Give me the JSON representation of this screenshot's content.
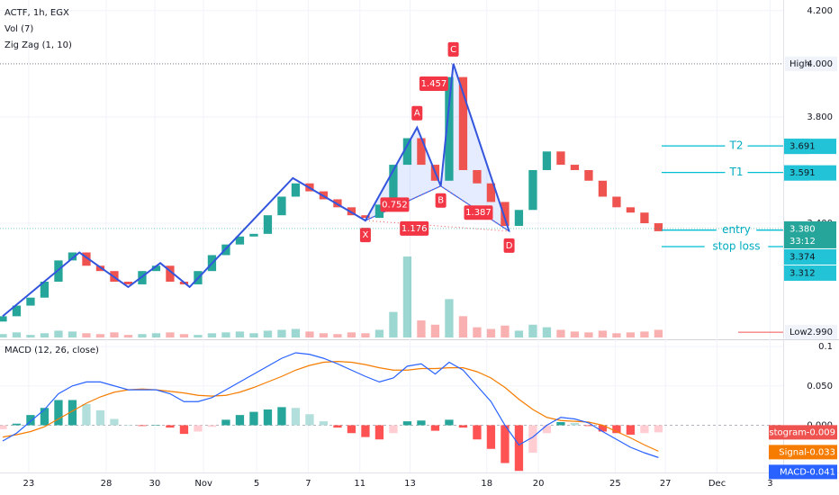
{
  "chart_data": [
    {
      "type": "candlestick",
      "title": "ACTF, 1h, EGX",
      "indicators": [
        "Vol (7)",
        "Zig Zag (1, 10)"
      ],
      "open": [
        3.03,
        3.05,
        3.09,
        3.12,
        3.18,
        3.26,
        3.29,
        3.24,
        3.22,
        3.18,
        3.17,
        3.22,
        3.24,
        3.18,
        3.17,
        3.22,
        3.28,
        3.32,
        3.35,
        3.36,
        3.43,
        3.5,
        3.55,
        3.52,
        3.49,
        3.46,
        3.43,
        3.42,
        3.47,
        3.62,
        3.72,
        3.62,
        3.56,
        3.95,
        3.6,
        3.55,
        3.48,
        3.39,
        3.45,
        3.6,
        3.67,
        3.62,
        3.6,
        3.56,
        3.5,
        3.46,
        3.44,
        3.4
      ],
      "high": {
        "name": "High",
        "value": 4,
        "label": "4.000"
      },
      "low": {
        "name": "Low",
        "value": 2.99,
        "label": "2.990"
      },
      "close": [
        3.05,
        3.09,
        3.12,
        3.18,
        3.26,
        3.29,
        3.24,
        3.22,
        3.18,
        3.17,
        3.22,
        3.24,
        3.18,
        3.17,
        3.22,
        3.28,
        3.32,
        3.35,
        3.36,
        3.43,
        3.5,
        3.55,
        3.52,
        3.49,
        3.46,
        3.43,
        3.42,
        3.47,
        3.62,
        3.72,
        3.62,
        3.56,
        3.95,
        3.6,
        3.55,
        3.48,
        3.39,
        3.45,
        3.6,
        3.67,
        3.62,
        3.6,
        3.56,
        3.5,
        3.46,
        3.44,
        3.4,
        3.37
      ],
      "volume": [
        4,
        6,
        3,
        5,
        8,
        7,
        5,
        4,
        6,
        3,
        4,
        5,
        6,
        4,
        3,
        5,
        6,
        7,
        5,
        8,
        9,
        10,
        7,
        5,
        4,
        6,
        5,
        9,
        30,
        95,
        20,
        15,
        45,
        25,
        12,
        10,
        14,
        8,
        15,
        12,
        9,
        7,
        6,
        8,
        5,
        6,
        7,
        9
      ],
      "up_color": "#26a69a",
      "down_color": "#ef5350",
      "xlim": [
        -0.19,
        55.94
      ],
      "xticks": [
        {
          "value": 1.87,
          "label": "23"
        },
        {
          "value": 7.42,
          "label": "28"
        },
        {
          "value": 10.9,
          "label": "30"
        },
        {
          "value": 14.4,
          "label": "Nov"
        },
        {
          "value": 18.2,
          "label": "5"
        },
        {
          "value": 21.9,
          "label": "7"
        },
        {
          "value": 25.6,
          "label": "11"
        },
        {
          "value": 29.2,
          "label": "13"
        },
        {
          "value": 34.7,
          "label": "18"
        },
        {
          "value": 38.4,
          "label": "20"
        },
        {
          "value": 43.9,
          "label": "25"
        },
        {
          "value": 47.5,
          "label": "27"
        },
        {
          "value": 51.2,
          "label": "Dec"
        },
        {
          "value": 55,
          "label": "3"
        }
      ],
      "ylim": [
        2.97,
        4.24
      ],
      "yticks": [
        {
          "value": 4.2,
          "label": "4.200"
        },
        {
          "value": 3.8,
          "label": "3.800"
        },
        {
          "value": 3.4,
          "label": "3.400"
        }
      ],
      "grid": true,
      "zigzag": {
        "color": "#3355dd",
        "x": [
          0,
          5.5,
          9,
          11.3,
          13.4,
          20.8,
          26,
          29.7,
          31.4,
          32.3,
          36.3
        ],
        "y": [
          3.05,
          3.29,
          3.16,
          3.25,
          3.16,
          3.57,
          3.41,
          3.76,
          3.54,
          4.0,
          3.37
        ]
      },
      "pattern": {
        "points": [
          {
            "label": "X",
            "x": 26,
            "y": 3.41
          },
          {
            "label": "A",
            "x": 29.7,
            "y": 3.76
          },
          {
            "label": "B",
            "x": 31.4,
            "y": 3.54
          },
          {
            "label": "C",
            "x": 32.3,
            "y": 4.0
          },
          {
            "label": "D",
            "x": 36.3,
            "y": 3.37
          }
        ],
        "ratios": [
          {
            "value": 0.752,
            "x": 28.1,
            "y": 3.47
          },
          {
            "value": 1.457,
            "x": 30.9,
            "y": 3.925
          },
          {
            "value": 1.176,
            "x": 29.5,
            "y": 3.38
          },
          {
            "value": 1.387,
            "x": 34.1,
            "y": 3.44
          }
        ]
      },
      "levels": [
        {
          "name": "T2",
          "value": 3.691
        },
        {
          "name": "T1",
          "value": 3.591
        },
        {
          "name": "entry",
          "value": 3.374
        },
        {
          "name": "stop loss",
          "value": 3.312
        }
      ],
      "last_price": {
        "value": 3.38,
        "label": "3.380"
      },
      "countdown": "33:12"
    },
    {
      "type": "macd",
      "title": "MACD (12, 26, close)",
      "ylim": [
        -0.06,
        0.108
      ],
      "yticks": [
        0.1,
        {
          "value": 0.05,
          "label": "0.050"
        },
        {
          "value": 0,
          "label": "0.000"
        }
      ],
      "series": [
        {
          "name": "Histogram",
          "color": "#ef5350",
          "values": [
            -0.005,
            0.002,
            0.013,
            0.022,
            0.032,
            0.032,
            0.027,
            0.019,
            0.008,
            0.0,
            -0.001,
            0.0,
            -0.003,
            -0.011,
            -0.008,
            -0.002,
            0.007,
            0.013,
            0.017,
            0.02,
            0.023,
            0.022,
            0.014,
            0.005,
            -0.003,
            -0.01,
            -0.015,
            -0.018,
            -0.01,
            0.005,
            0.006,
            -0.007,
            0.007,
            -0.003,
            -0.018,
            -0.03,
            -0.048,
            -0.058,
            -0.035,
            -0.01,
            0.004,
            0.003,
            -0.001,
            -0.008,
            -0.01,
            -0.012,
            -0.01,
            -0.009
          ]
        },
        {
          "name": "Signal",
          "color": "#f57c00",
          "values": [
            -0.015,
            -0.012,
            -0.008,
            -0.002,
            0.008,
            0.018,
            0.028,
            0.036,
            0.042,
            0.045,
            0.046,
            0.045,
            0.043,
            0.041,
            0.038,
            0.037,
            0.038,
            0.042,
            0.048,
            0.055,
            0.062,
            0.07,
            0.076,
            0.08,
            0.081,
            0.08,
            0.077,
            0.073,
            0.07,
            0.07,
            0.072,
            0.072,
            0.073,
            0.073,
            0.068,
            0.06,
            0.048,
            0.033,
            0.02,
            0.01,
            0.006,
            0.005,
            0.004,
            0.0,
            -0.008,
            -0.016,
            -0.025,
            -0.033
          ]
        },
        {
          "name": "MACD",
          "color": "#2962ff",
          "values": [
            -0.02,
            -0.01,
            0.005,
            0.02,
            0.04,
            0.05,
            0.055,
            0.055,
            0.05,
            0.045,
            0.045,
            0.045,
            0.04,
            0.03,
            0.03,
            0.035,
            0.045,
            0.055,
            0.065,
            0.075,
            0.085,
            0.092,
            0.09,
            0.085,
            0.078,
            0.07,
            0.062,
            0.055,
            0.06,
            0.075,
            0.078,
            0.065,
            0.08,
            0.07,
            0.05,
            0.03,
            0.0,
            -0.025,
            -0.015,
            0.0,
            0.01,
            0.008,
            0.003,
            -0.008,
            -0.018,
            -0.028,
            -0.035,
            -0.041
          ]
        }
      ]
    }
  ]
}
